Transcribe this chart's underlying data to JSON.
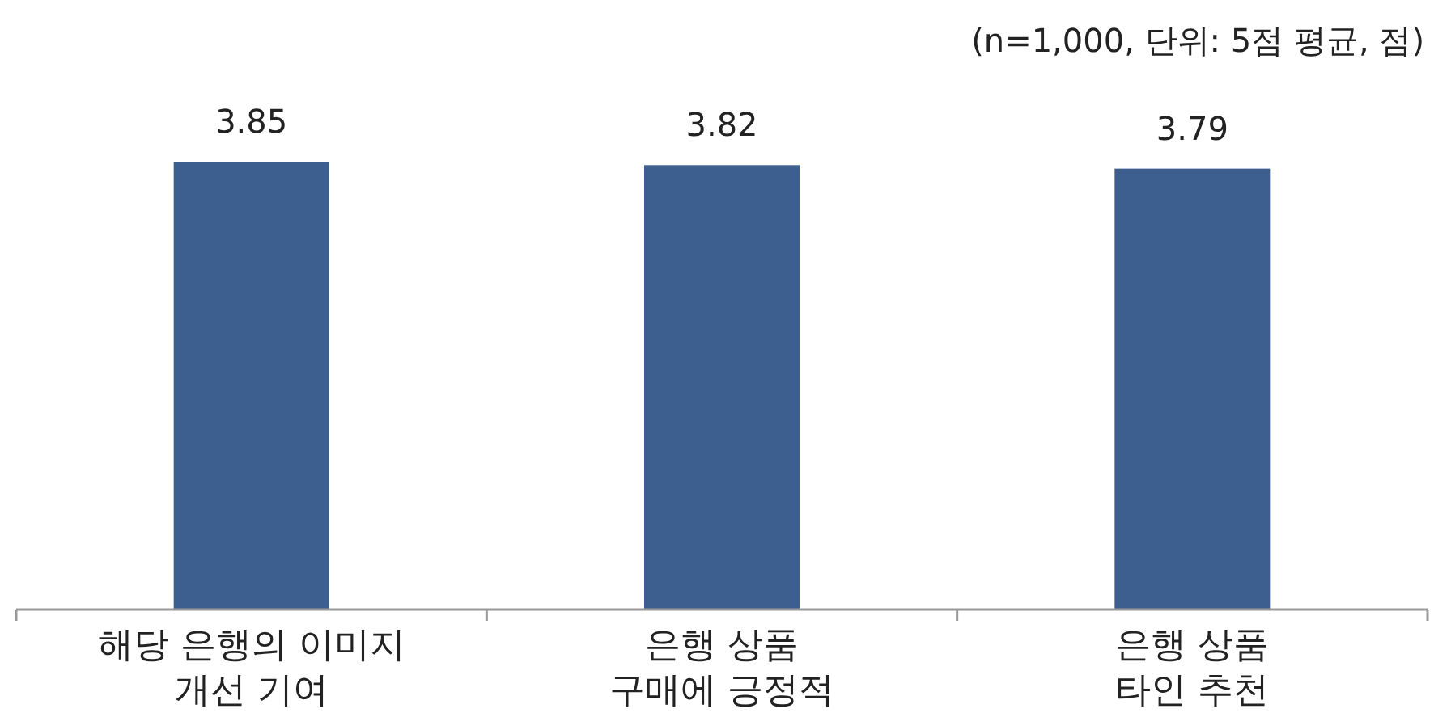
{
  "chart_data": {
    "type": "bar",
    "categories": [
      "해당 은행의 이미지\n개선 기여",
      "은행 상품\n구매에 긍정적",
      "은행 상품\n타인 추천"
    ],
    "values": [
      3.85,
      3.82,
      3.79
    ],
    "color": "#3d5f8f",
    "data_labels": true,
    "annotations": [
      "(n=1,000, 단위: 5점 평균, 점)"
    ]
  }
}
